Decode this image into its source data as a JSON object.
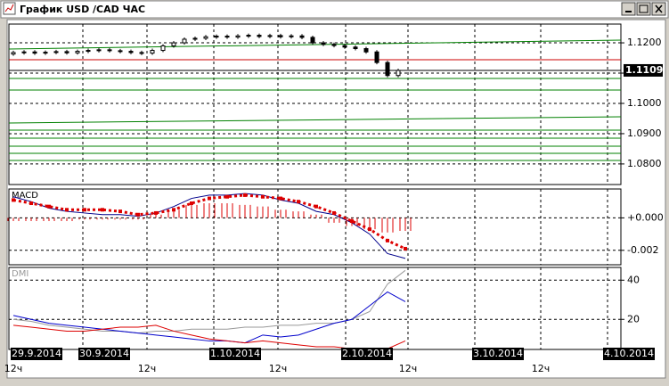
{
  "window": {
    "title": "График USD /CAD ЧАС"
  },
  "chart_data": [
    {
      "type": "candlestick",
      "yticks": [
        {
          "value": 1.12,
          "label": "1.1200"
        },
        {
          "value": 1.11,
          "label": "1.1100"
        },
        {
          "value": 1.1,
          "label": "1.1000"
        },
        {
          "value": 1.09,
          "label": "1.0900"
        },
        {
          "value": 1.08,
          "label": "1.0800"
        }
      ],
      "ylim": [
        1.0732,
        1.1262
      ],
      "grid": true,
      "last_price": 1.1109,
      "series": [
        {
          "color": "#000000",
          "open": [
            1.1163,
            1.1168,
            1.117,
            1.1166,
            1.1169,
            1.1171,
            1.1167,
            1.1172,
            1.1175,
            1.1177,
            1.1174,
            1.1172,
            1.1168,
            1.1166,
            1.1175,
            1.119,
            1.12,
            1.1212,
            1.1215,
            1.122,
            1.1222,
            1.1219,
            1.1223,
            1.1225,
            1.1221,
            1.1224,
            1.122,
            1.1223,
            1.1218,
            1.12,
            1.1195,
            1.1191,
            1.1186,
            1.1181,
            1.117,
            1.1135,
            1.1092
          ],
          "close": [
            1.1168,
            1.117,
            1.1166,
            1.1169,
            1.1171,
            1.1167,
            1.1172,
            1.1175,
            1.1177,
            1.1174,
            1.1172,
            1.1168,
            1.1166,
            1.1175,
            1.119,
            1.12,
            1.1212,
            1.1215,
            1.122,
            1.1222,
            1.1219,
            1.1223,
            1.1225,
            1.1221,
            1.1224,
            1.122,
            1.1223,
            1.1218,
            1.12,
            1.1195,
            1.1191,
            1.1186,
            1.1181,
            1.117,
            1.1135,
            1.1092,
            1.1109
          ]
        }
      ]
    },
    {
      "type": "macd",
      "title": "MACD",
      "yticks": [
        {
          "value": 0,
          "label": "+0.000"
        },
        -0.002
      ],
      "ylim": [
        -0.00289,
        0.00178
      ],
      "grid": true,
      "series": [
        {
          "color": "#00008b",
          "style": "line",
          "values": [
            0.0013,
            0.001,
            0.0006,
            0.0004,
            0.0003,
            0.0002,
            0.0002,
            0.0001,
            0.0003,
            0.0007,
            0.0012,
            0.0014,
            0.0014,
            0.0015,
            0.0014,
            0.0011,
            0.0009,
            0.0004,
            0.0002,
            -0.0003,
            -0.001,
            -0.0022,
            -0.0025
          ]
        },
        {
          "color": "#dd0000",
          "style": "dots",
          "values": [
            0.0011,
            0.0009,
            0.0007,
            0.0005,
            0.0005,
            0.0005,
            0.0004,
            0.0002,
            0.0003,
            0.0005,
            0.0009,
            0.0012,
            0.0013,
            0.0014,
            0.0013,
            0.0012,
            0.001,
            0.0007,
            0.0003,
            -0.0002,
            -0.0007,
            -0.0014,
            -0.0019
          ]
        },
        {
          "color": "#dd0000",
          "style": "histogram",
          "values": [
            -0.0002,
            -0.0002,
            -0.0002,
            -0.0002,
            -0.0001,
            -0.0001,
            -0.0001,
            -0.0001,
            0.0002,
            0.0005,
            0.0008,
            0.0009,
            0.0009,
            0.0008,
            0.0007,
            0.0005,
            0.0004,
            0.0002,
            -0.0003,
            -0.0005,
            -0.0007,
            -0.0009,
            -0.0008
          ]
        }
      ]
    },
    {
      "type": "line",
      "title": "DMI",
      "yticks": [
        40,
        20
      ],
      "ylim": [
        4.65,
        46.5
      ],
      "grid": true,
      "series": [
        {
          "color": "#999999",
          "values": [
            20,
            19,
            17,
            16,
            15,
            14,
            14,
            13,
            14,
            14,
            15,
            15,
            15,
            16,
            16,
            17,
            17,
            18,
            18,
            20,
            24,
            38,
            45
          ]
        },
        {
          "color": "#0000cc",
          "values": [
            22,
            20,
            18,
            17,
            16,
            15,
            14,
            13,
            12,
            11,
            10,
            9,
            9,
            8,
            12,
            11,
            12,
            15,
            18,
            20,
            27,
            34,
            29
          ]
        },
        {
          "color": "#dd0000",
          "values": [
            17,
            16,
            15,
            14,
            14,
            15,
            16,
            16,
            17,
            14,
            12,
            10,
            9,
            8,
            9,
            8,
            7,
            6,
            6,
            5,
            5,
            5,
            9
          ]
        }
      ]
    }
  ],
  "time_axis": {
    "dates": [
      "29.9.2014",
      "30.9.2014",
      "1.10.2014",
      "2.10.2014",
      "3.10.2014",
      "4.10.2014"
    ],
    "hours": [
      "12ч",
      "12ч",
      "12ч",
      "12ч",
      "12ч"
    ]
  }
}
